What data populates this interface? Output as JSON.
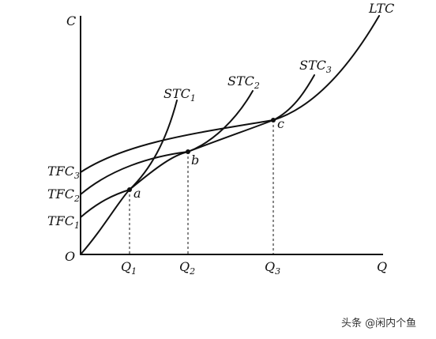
{
  "axes": {
    "y_label": "C",
    "x_label": "Q",
    "origin": "O"
  },
  "curves": [
    {
      "id": "ltc",
      "label": "LTC",
      "sub": ""
    },
    {
      "id": "stc1",
      "label": "STC",
      "sub": "1"
    },
    {
      "id": "stc2",
      "label": "STC",
      "sub": "2"
    },
    {
      "id": "stc3",
      "label": "STC",
      "sub": "3"
    }
  ],
  "intercepts": [
    {
      "label": "TFC",
      "sub": "3"
    },
    {
      "label": "TFC",
      "sub": "2"
    },
    {
      "label": "TFC",
      "sub": "1"
    }
  ],
  "points": [
    "a",
    "b",
    "c"
  ],
  "x_ticks": [
    {
      "label": "Q",
      "sub": "1"
    },
    {
      "label": "Q",
      "sub": "2"
    },
    {
      "label": "Q",
      "sub": "3"
    }
  ],
  "watermark": "头条 @闲内个鱼"
}
